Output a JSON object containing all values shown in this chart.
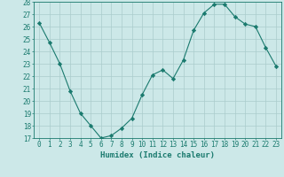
{
  "x": [
    0,
    1,
    2,
    3,
    4,
    5,
    6,
    7,
    8,
    9,
    10,
    11,
    12,
    13,
    14,
    15,
    16,
    17,
    18,
    19,
    20,
    21,
    22,
    23
  ],
  "y": [
    26.3,
    24.7,
    23.0,
    20.8,
    19.0,
    18.0,
    17.0,
    17.2,
    17.8,
    18.6,
    20.5,
    22.1,
    22.5,
    21.8,
    23.3,
    25.7,
    27.1,
    27.8,
    27.8,
    26.8,
    26.2,
    26.0,
    24.3,
    22.8
  ],
  "xlabel": "Humidex (Indice chaleur)",
  "ylim": [
    17,
    28
  ],
  "yticks": [
    17,
    18,
    19,
    20,
    21,
    22,
    23,
    24,
    25,
    26,
    27,
    28
  ],
  "xticks": [
    0,
    1,
    2,
    3,
    4,
    5,
    6,
    7,
    8,
    9,
    10,
    11,
    12,
    13,
    14,
    15,
    16,
    17,
    18,
    19,
    20,
    21,
    22,
    23
  ],
  "line_color": "#1a7a6e",
  "marker": "D",
  "marker_size": 2.2,
  "bg_color": "#cce8e8",
  "grid_color": "#aacccc",
  "label_fontsize": 6.5,
  "tick_fontsize": 5.5
}
